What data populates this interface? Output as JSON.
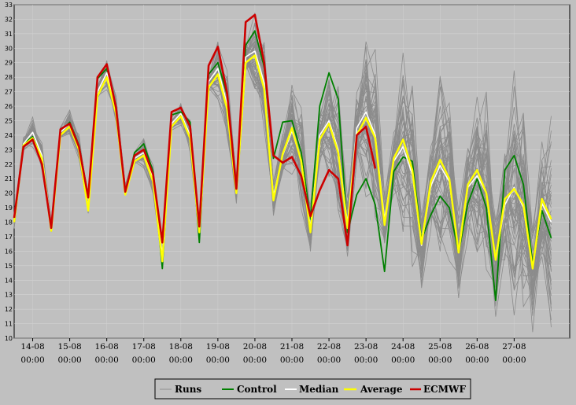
{
  "chart_data": {
    "type": "line",
    "title": "",
    "xlabel": "",
    "ylabel": "",
    "ylim": [
      10,
      33
    ],
    "yticks": [
      10,
      11,
      12,
      13,
      14,
      15,
      16,
      17,
      18,
      19,
      20,
      21,
      22,
      23,
      24,
      25,
      26,
      27,
      28,
      29,
      30,
      31,
      32,
      33
    ],
    "x_tick_labels": [
      {
        "date": "14-08",
        "time": "00:00"
      },
      {
        "date": "15-08",
        "time": "00:00"
      },
      {
        "date": "16-08",
        "time": "00:00"
      },
      {
        "date": "17-08",
        "time": "00:00"
      },
      {
        "date": "18-08",
        "time": "00:00"
      },
      {
        "date": "19-08",
        "time": "00:00"
      },
      {
        "date": "20-08",
        "time": "00:00"
      },
      {
        "date": "21-08",
        "time": "00:00"
      },
      {
        "date": "22-08",
        "time": "00:00"
      },
      {
        "date": "23-08",
        "time": "00:00"
      },
      {
        "date": "24-08",
        "time": "00:00"
      },
      {
        "date": "25-08",
        "time": "00:00"
      },
      {
        "date": "26-08",
        "time": "00:00"
      },
      {
        "date": "27-08",
        "time": "00:00"
      }
    ],
    "x_hours": [
      -12,
      -6,
      0,
      6,
      12,
      18,
      24,
      30,
      36,
      42,
      48,
      54,
      60,
      66,
      72,
      78,
      84,
      90,
      96,
      102,
      108,
      114,
      120,
      126,
      132,
      138,
      144,
      150,
      156,
      162,
      168,
      174,
      180,
      186,
      192,
      198,
      204,
      210,
      216,
      222,
      228,
      234,
      240,
      246,
      252,
      258,
      264,
      270,
      276,
      282,
      288,
      294,
      300,
      306,
      312,
      318,
      324,
      330,
      336
    ],
    "grid": true,
    "legend": "bottom",
    "series": [
      {
        "name": "Control",
        "color": "#008000",
        "values": [
          18.2,
          23.4,
          23.9,
          22.4,
          17.5,
          24.2,
          24.9,
          23.3,
          19.8,
          27.9,
          28.6,
          25.8,
          20.1,
          22.8,
          23.4,
          21.5,
          14.8,
          25.4,
          25.6,
          24.9,
          16.6,
          28.2,
          29.0,
          26.8,
          20.3,
          30.2,
          31.2,
          28.7,
          22.4,
          24.9,
          25.0,
          22.8,
          18.2,
          26.0,
          28.3,
          26.5,
          17.3,
          19.9,
          21.0,
          19.2,
          14.6,
          21.5,
          22.5,
          22.2,
          16.8,
          18.5,
          19.8,
          19.0,
          15.9,
          19.3,
          21.0,
          19.0,
          12.6,
          21.6,
          22.6,
          20.6,
          15.1,
          18.8,
          16.9
        ]
      },
      {
        "name": "Median",
        "color": "#ffffff",
        "values": [
          18.0,
          23.4,
          24.2,
          22.6,
          17.7,
          24.2,
          24.8,
          23.2,
          19.0,
          27.0,
          28.3,
          25.8,
          20.2,
          22.4,
          22.8,
          21.0,
          15.7,
          24.8,
          25.5,
          24.0,
          17.6,
          27.7,
          28.6,
          26.1,
          20.3,
          29.4,
          29.8,
          27.6,
          19.8,
          22.6,
          24.3,
          22.3,
          17.6,
          24.0,
          25.0,
          23.0,
          17.9,
          24.5,
          25.6,
          24.0,
          18.2,
          22.2,
          23.2,
          21.3,
          16.4,
          20.5,
          21.9,
          20.8,
          15.9,
          20.4,
          21.2,
          20.0,
          15.4,
          19.2,
          20.4,
          19.0,
          14.8,
          19.3,
          18.0
        ]
      },
      {
        "name": "Average",
        "color": "#ffff00",
        "values": [
          18.0,
          23.3,
          23.8,
          22.4,
          17.4,
          24.0,
          24.6,
          23.0,
          18.8,
          26.7,
          28.0,
          25.5,
          19.9,
          22.2,
          22.6,
          20.8,
          15.3,
          24.6,
          25.3,
          23.8,
          17.3,
          27.3,
          28.2,
          25.8,
          20.0,
          29.0,
          29.5,
          27.2,
          19.5,
          22.7,
          24.5,
          22.2,
          17.3,
          23.7,
          24.8,
          22.8,
          17.6,
          24.0,
          25.2,
          23.8,
          17.8,
          22.4,
          23.7,
          21.6,
          16.5,
          20.8,
          22.3,
          21.0,
          15.9,
          20.6,
          21.6,
          20.0,
          15.4,
          19.6,
          20.3,
          19.2,
          14.8,
          19.6,
          18.2
        ]
      },
      {
        "name": "ECMWF",
        "color": "#cc0000",
        "values": [
          18.3,
          23.2,
          23.7,
          22.0,
          17.6,
          24.4,
          24.8,
          23.2,
          19.7,
          28.0,
          28.9,
          25.9,
          20.1,
          22.6,
          23.0,
          21.3,
          16.6,
          25.6,
          25.9,
          24.6,
          17.7,
          28.8,
          30.1,
          26.9,
          20.3,
          31.8,
          32.3,
          29.0,
          22.6,
          22.1,
          22.5,
          21.2,
          18.4,
          20.2,
          21.6,
          21.0,
          16.4,
          24.0,
          24.6,
          21.7
        ]
      }
    ],
    "runs": {
      "name": "Runs",
      "color": "#8c8c8c",
      "note_mins": [
        17.0,
        17.0,
        18.0,
        17.5,
        13.8,
        15.6,
        17.3,
        19.0,
        14.0,
        15.0,
        14.8,
        12.7,
        12.2,
        12.0,
        11.8,
        11.5,
        10.5,
        10.2,
        10.0,
        10.0
      ],
      "note_maxs": [
        25.0,
        26.6,
        29.5,
        24.6,
        28.0,
        31.8,
        33.0,
        32.5,
        32.8,
        32.7,
        31.7,
        31.5,
        30.3,
        28.5,
        28.6,
        28.7,
        28.5,
        28.6,
        28.4,
        28.4
      ]
    }
  },
  "legend": {
    "items": [
      {
        "label": "Runs",
        "color": "#a0a0a0"
      },
      {
        "label": "Control",
        "color": "#008000"
      },
      {
        "label": "Median",
        "color": "#ffffff"
      },
      {
        "label": "Average",
        "color": "#ffff00"
      },
      {
        "label": "ECMWF",
        "color": "#cc0000"
      }
    ]
  }
}
